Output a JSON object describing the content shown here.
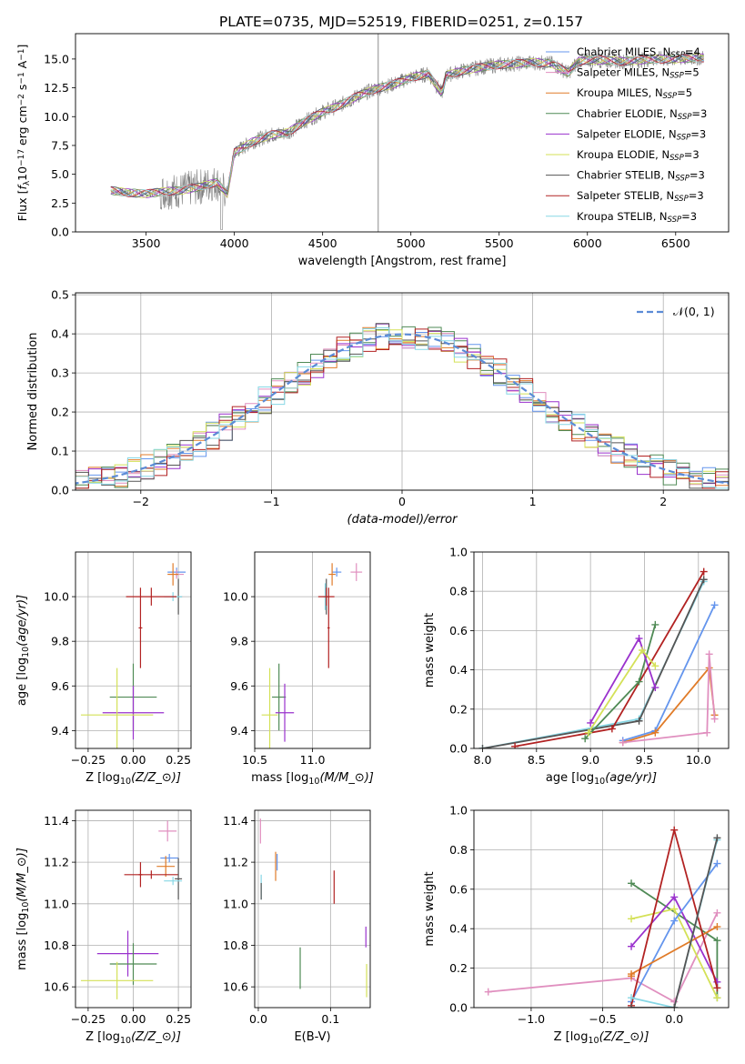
{
  "figure": {
    "title": "PLATE=0735, MJD=52519, FIBERID=0251, z=0.157"
  },
  "chart_data": [
    {
      "panel": "spectrum",
      "type": "line",
      "xlabel": "wavelength [Angstrom, rest frame]",
      "ylabel": "Flux [f$_\\lambda$10$^{-17}$ erg cm$^{-2}$ s$^{-1}$ A$^{-1}$]",
      "ylabel_parts": [
        "Flux [",
        "f",
        "λ",
        "10",
        "−17",
        " erg cm",
        "−2",
        " s",
        "−1",
        " A",
        "−1",
        "]"
      ],
      "xlim": [
        3100,
        6800
      ],
      "ylim": [
        0,
        17.2
      ],
      "xticks": [
        3500,
        4000,
        4500,
        5000,
        5500,
        6000,
        6500
      ],
      "yticks": [
        0.0,
        2.5,
        5.0,
        7.5,
        10.0,
        12.5,
        15.0
      ],
      "grid": false,
      "legend_position": "top-right",
      "data_line_color": "#808080",
      "continuum_anchors": {
        "x": [
          3300,
          3400,
          3500,
          3600,
          3700,
          3800,
          3900,
          3960,
          4000,
          4100,
          4200,
          4300,
          4400,
          4500,
          4600,
          4700,
          4800,
          4900,
          5000,
          5100,
          5175,
          5200,
          5300,
          5400,
          5500,
          5600,
          5700,
          5800,
          5890,
          5950,
          6000,
          6100,
          6200,
          6300,
          6400,
          6500,
          6600,
          6650
        ],
        "y": [
          3.6,
          3.4,
          3.3,
          3.5,
          3.6,
          3.9,
          4.3,
          3.3,
          6.9,
          7.8,
          8.4,
          8.6,
          9.6,
          10.4,
          11.0,
          11.8,
          12.4,
          12.8,
          13.4,
          13.7,
          12.0,
          13.6,
          14.0,
          14.3,
          14.5,
          14.6,
          14.7,
          14.6,
          13.8,
          14.8,
          14.9,
          14.9,
          14.8,
          14.9,
          15.0,
          15.0,
          15.1,
          15.1
        ]
      },
      "series": [
        {
          "name": "Chabrier MILES, N$_{SSP}$=4",
          "label_parts": [
            "Chabrier MILES, N",
            "SSP",
            "=4"
          ],
          "color": "#6495ed"
        },
        {
          "name": "Salpeter MILES, N$_{SSP}$=5",
          "label_parts": [
            "Salpeter MILES, N",
            "SSP",
            "=5"
          ],
          "color": "#e08fbf"
        },
        {
          "name": "Kroupa MILES, N$_{SSP}$=5",
          "label_parts": [
            "Kroupa MILES, N",
            "SSP",
            "=5"
          ],
          "color": "#e07b28"
        },
        {
          "name": "Chabrier ELODIE, N$_{SSP}$=3",
          "label_parts": [
            "Chabrier ELODIE, N",
            "SSP",
            "=3"
          ],
          "color": "#4f8a55"
        },
        {
          "name": "Salpeter ELODIE, N$_{SSP}$=3",
          "label_parts": [
            "Salpeter ELODIE, N",
            "SSP",
            "=3"
          ],
          "color": "#9a32cd"
        },
        {
          "name": "Kroupa ELODIE, N$_{SSP}$=3",
          "label_parts": [
            "Kroupa ELODIE, N",
            "SSP",
            "=3"
          ],
          "color": "#d4e157"
        },
        {
          "name": "Chabrier STELIB, N$_{SSP}$=3",
          "label_parts": [
            "Chabrier STELIB, N",
            "SSP",
            "=3"
          ],
          "color": "#555555"
        },
        {
          "name": "Salpeter STELIB, N$_{SSP}$=3",
          "label_parts": [
            "Salpeter STELIB, N",
            "SSP",
            "=3"
          ],
          "color": "#b22222"
        },
        {
          "name": "Kroupa STELIB, N$_{SSP}$=3",
          "label_parts": [
            "Kroupa STELIB, N",
            "SSP",
            "=3"
          ],
          "color": "#87d7e5"
        }
      ]
    },
    {
      "panel": "residuals",
      "type": "area",
      "xlabel": "(data-model)/error",
      "ylabel": "Normed distribution",
      "xlim": [
        -2.5,
        2.5
      ],
      "ylim": [
        0,
        0.505
      ],
      "xticks": [
        -2,
        -1,
        0,
        1,
        2
      ],
      "yticks": [
        0.0,
        0.1,
        0.2,
        0.3,
        0.4,
        0.5
      ],
      "grid": true,
      "legend_position": "top-right",
      "reference_curve": {
        "name": "$\\mathcal{N}(0,1)$",
        "label": "𝒩(0, 1)",
        "mean": 0,
        "sigma": 1,
        "color": "#5b8bd6",
        "style": "dashed"
      },
      "bin_width": 0.1,
      "histogram_series_colors": [
        "#6495ed",
        "#e08fbf",
        "#e07b28",
        "#4f8a55",
        "#9a32cd",
        "#d4e157",
        "#555555",
        "#b22222",
        "#87d7e5"
      ]
    },
    {
      "panel": "age_vs_Z",
      "type": "scatter",
      "xlabel": "Z [log$_{10}$($Z/Z_\\odot$)]",
      "ylabel": "age  [log$_{10}$($age/yr$)]",
      "xlim": [
        -0.32,
        0.32
      ],
      "ylim": [
        9.32,
        10.2
      ],
      "xticks": [
        -0.25,
        0.0,
        0.25
      ],
      "yticks": [
        9.4,
        9.6,
        9.8,
        10.0
      ],
      "grid": true,
      "points": [
        {
          "color": "#6495ed",
          "x": 0.24,
          "y": 10.11,
          "xerr": 0.05,
          "yerr": 0.02
        },
        {
          "color": "#e08fbf",
          "x": 0.24,
          "y": 10.1,
          "xerr": 0.04,
          "yerr": 0.02
        },
        {
          "color": "#e07b28",
          "x": 0.22,
          "y": 10.1,
          "xerr": 0.03,
          "yerr": 0.05
        },
        {
          "color": "#555555",
          "x": 0.25,
          "y": 10.0,
          "xerr": 0.02,
          "yerr": 0.08
        },
        {
          "color": "#87d7e5",
          "x": 0.22,
          "y": 10.0,
          "xerr": 0.05,
          "yerr": 0.02
        },
        {
          "color": "#b22222",
          "x": 0.1,
          "y": 10.0,
          "xerr": 0.14,
          "yerr": 0.04
        },
        {
          "color": "#b22222",
          "x": 0.04,
          "y": 9.86,
          "xerr": 0.01,
          "yerr": 0.18
        },
        {
          "color": "#4f8a55",
          "x": 0.0,
          "y": 9.55,
          "xerr": 0.13,
          "yerr": 0.15
        },
        {
          "color": "#9a32cd",
          "x": 0.0,
          "y": 9.48,
          "xerr": 0.17,
          "yerr": 0.12
        },
        {
          "color": "#d4e157",
          "x": -0.09,
          "y": 9.47,
          "xerr": 0.2,
          "yerr": 0.21
        }
      ]
    },
    {
      "panel": "age_vs_mass",
      "type": "scatter",
      "xlabel": "mass [log$_{10}$($M/M_\\odot$)]",
      "ylabel": "",
      "xlim": [
        10.5,
        11.5
      ],
      "ylim": [
        9.32,
        10.2
      ],
      "xticks": [
        10.5,
        11.0
      ],
      "yticks": [
        9.4,
        9.6,
        9.8,
        10.0
      ],
      "grid": true,
      "points": [
        {
          "color": "#e08fbf",
          "x": 11.38,
          "y": 10.11,
          "xerr": 0.05,
          "yerr": 0.04
        },
        {
          "color": "#6495ed",
          "x": 11.21,
          "y": 10.11,
          "xerr": 0.04,
          "yerr": 0.02
        },
        {
          "color": "#e07b28",
          "x": 11.17,
          "y": 10.1,
          "xerr": 0.03,
          "yerr": 0.05
        },
        {
          "color": "#555555",
          "x": 11.12,
          "y": 10.0,
          "xerr": 0.02,
          "yerr": 0.08
        },
        {
          "color": "#87d7e5",
          "x": 11.11,
          "y": 10.0,
          "xerr": 0.02,
          "yerr": 0.06
        },
        {
          "color": "#b22222",
          "x": 11.12,
          "y": 10.0,
          "xerr": 0.07,
          "yerr": 0.04
        },
        {
          "color": "#b22222",
          "x": 11.14,
          "y": 9.86,
          "xerr": 0.01,
          "yerr": 0.18
        },
        {
          "color": "#4f8a55",
          "x": 10.71,
          "y": 9.55,
          "xerr": 0.06,
          "yerr": 0.15
        },
        {
          "color": "#9a32cd",
          "x": 10.76,
          "y": 9.48,
          "xerr": 0.08,
          "yerr": 0.13
        },
        {
          "color": "#d4e157",
          "x": 10.63,
          "y": 9.47,
          "xerr": 0.07,
          "yerr": 0.21
        }
      ]
    },
    {
      "panel": "massweight_vs_age",
      "type": "line",
      "xlabel": "age  [log$_{10}$($age/yr$)]",
      "ylabel": "mass weight",
      "xlim": [
        7.92,
        10.28
      ],
      "ylim": [
        0.0,
        1.0
      ],
      "xticks": [
        8.0,
        8.5,
        9.0,
        9.5,
        10.0
      ],
      "yticks": [
        0.0,
        0.2,
        0.4,
        0.6,
        0.8,
        1.0
      ],
      "grid": true,
      "series": [
        {
          "color": "#87d7e5",
          "x": [
            8.0,
            9.45,
            10.05
          ],
          "y": [
            0.0,
            0.15,
            0.85
          ]
        },
        {
          "color": "#555555",
          "x": [
            8.0,
            9.45,
            10.05
          ],
          "y": [
            0.0,
            0.14,
            0.86
          ]
        },
        {
          "color": "#b22222",
          "x": [
            8.3,
            9.2,
            10.05
          ],
          "y": [
            0.01,
            0.1,
            0.9
          ]
        },
        {
          "color": "#4f8a55",
          "x": [
            8.95,
            9.45,
            9.6
          ],
          "y": [
            0.05,
            0.34,
            0.63
          ]
        },
        {
          "color": "#9a32cd",
          "x": [
            9.0,
            9.45,
            9.6
          ],
          "y": [
            0.13,
            0.56,
            0.31
          ]
        },
        {
          "color": "#d4e157",
          "x": [
            8.98,
            9.48,
            9.6
          ],
          "y": [
            0.08,
            0.5,
            0.42
          ]
        },
        {
          "color": "#6495ed",
          "x": [
            9.3,
            9.6,
            10.15
          ],
          "y": [
            0.04,
            0.09,
            0.73
          ]
        },
        {
          "color": "#e07b28",
          "x": [
            9.3,
            9.6,
            10.1,
            10.15
          ],
          "y": [
            0.03,
            0.08,
            0.41,
            0.17
          ]
        },
        {
          "color": "#e08fbf",
          "x": [
            9.3,
            10.08,
            10.1,
            10.15
          ],
          "y": [
            0.03,
            0.08,
            0.48,
            0.15
          ]
        }
      ]
    },
    {
      "panel": "mass_vs_Z",
      "type": "scatter",
      "xlabel": "Z [log$_{10}$($Z/Z_\\odot$)]",
      "ylabel": "mass [log$_{10}$($M/M_\\odot$)]",
      "xlim": [
        -0.32,
        0.32
      ],
      "ylim": [
        10.5,
        11.45
      ],
      "xticks": [
        -0.25,
        0.0,
        0.25
      ],
      "yticks": [
        10.6,
        10.8,
        11.0,
        11.2,
        11.4
      ],
      "grid": true,
      "points": [
        {
          "color": "#e08fbf",
          "x": 0.19,
          "y": 11.35,
          "xerr": 0.05,
          "yerr": 0.05
        },
        {
          "color": "#6495ed",
          "x": 0.2,
          "y": 11.22,
          "xerr": 0.05,
          "yerr": 0.02
        },
        {
          "color": "#e07b28",
          "x": 0.18,
          "y": 11.18,
          "xerr": 0.05,
          "yerr": 0.05
        },
        {
          "color": "#b22222",
          "x": 0.1,
          "y": 11.14,
          "xerr": 0.15,
          "yerr": 0.02
        },
        {
          "color": "#b22222",
          "x": 0.04,
          "y": 11.14,
          "xerr": 0.01,
          "yerr": 0.06
        },
        {
          "color": "#555555",
          "x": 0.25,
          "y": 11.12,
          "xerr": 0.02,
          "yerr": 0.1
        },
        {
          "color": "#87d7e5",
          "x": 0.22,
          "y": 11.11,
          "xerr": 0.05,
          "yerr": 0.02
        },
        {
          "color": "#9a32cd",
          "x": -0.03,
          "y": 10.76,
          "xerr": 0.17,
          "yerr": 0.11
        },
        {
          "color": "#4f8a55",
          "x": 0.0,
          "y": 10.71,
          "xerr": 0.13,
          "yerr": 0.1
        },
        {
          "color": "#d4e157",
          "x": -0.09,
          "y": 10.63,
          "xerr": 0.2,
          "yerr": 0.09
        }
      ]
    },
    {
      "panel": "mass_vs_EBV",
      "type": "scatter",
      "xlabel": "E(B-V)",
      "ylabel": "",
      "xlim": [
        -0.005,
        0.155
      ],
      "ylim": [
        10.5,
        11.45
      ],
      "xticks": [
        0.0,
        0.1
      ],
      "yticks": [
        10.6,
        10.8,
        11.0,
        11.2,
        11.4
      ],
      "grid": true,
      "points": [
        {
          "color": "#e08fbf",
          "x": 0.003,
          "y": 11.35,
          "xerr": 0,
          "yerr": 0.06
        },
        {
          "color": "#6495ed",
          "x": 0.026,
          "y": 11.2,
          "xerr": 0,
          "yerr": 0.04
        },
        {
          "color": "#e07b28",
          "x": 0.024,
          "y": 11.18,
          "xerr": 0,
          "yerr": 0.07
        },
        {
          "color": "#87d7e5",
          "x": 0.004,
          "y": 11.08,
          "xerr": 0,
          "yerr": 0.06
        },
        {
          "color": "#555555",
          "x": 0.004,
          "y": 11.06,
          "xerr": 0,
          "yerr": 0.04
        },
        {
          "color": "#b22222",
          "x": 0.105,
          "y": 11.08,
          "xerr": 0,
          "yerr": 0.08
        },
        {
          "color": "#9a32cd",
          "x": 0.149,
          "y": 10.84,
          "xerr": 0,
          "yerr": 0.05
        },
        {
          "color": "#d4e157",
          "x": 0.15,
          "y": 10.63,
          "xerr": 0,
          "yerr": 0.08
        },
        {
          "color": "#4f8a55",
          "x": 0.058,
          "y": 10.69,
          "xerr": 0,
          "yerr": 0.1
        }
      ]
    },
    {
      "panel": "massweight_vs_Z",
      "type": "line",
      "xlabel": "Z [log$_{10}$($Z/Z_\\odot$)]",
      "ylabel": "mass weight",
      "xlim": [
        -1.4,
        0.38
      ],
      "ylim": [
        0.0,
        1.0
      ],
      "xticks": [
        -1.0,
        -0.5,
        0.0
      ],
      "yticks": [
        0.0,
        0.2,
        0.4,
        0.6,
        0.8,
        1.0
      ],
      "grid": true,
      "series": [
        {
          "color": "#e08fbf",
          "x": [
            -1.3,
            -0.3,
            0.0,
            0.3
          ],
          "y": [
            0.08,
            0.15,
            0.03,
            0.48
          ]
        },
        {
          "color": "#4f8a55",
          "x": [
            -0.3,
            0.3,
            0.3
          ],
          "y": [
            0.63,
            0.34,
            0.05
          ]
        },
        {
          "color": "#d4e157",
          "x": [
            -0.3,
            0.0,
            0.3
          ],
          "y": [
            0.45,
            0.5,
            0.05
          ]
        },
        {
          "color": "#9a32cd",
          "x": [
            -0.3,
            0.0,
            0.3
          ],
          "y": [
            0.31,
            0.56,
            0.13
          ]
        },
        {
          "color": "#6495ed",
          "x": [
            -0.3,
            0.0,
            0.3
          ],
          "y": [
            0.03,
            0.44,
            0.73
          ]
        },
        {
          "color": "#e07b28",
          "x": [
            -0.3,
            -0.3,
            0.3
          ],
          "y": [
            0.16,
            0.17,
            0.41
          ]
        },
        {
          "color": "#b22222",
          "x": [
            -0.3,
            0.0,
            0.3
          ],
          "y": [
            0.01,
            0.9,
            0.1
          ]
        },
        {
          "color": "#87d7e5",
          "x": [
            -0.3,
            0.0,
            0.3
          ],
          "y": [
            0.05,
            0.0,
            0.85
          ]
        },
        {
          "color": "#555555",
          "x": [
            -0.3,
            0.0,
            0.3
          ],
          "y": [
            0.0,
            0.0,
            0.86
          ]
        }
      ]
    }
  ]
}
